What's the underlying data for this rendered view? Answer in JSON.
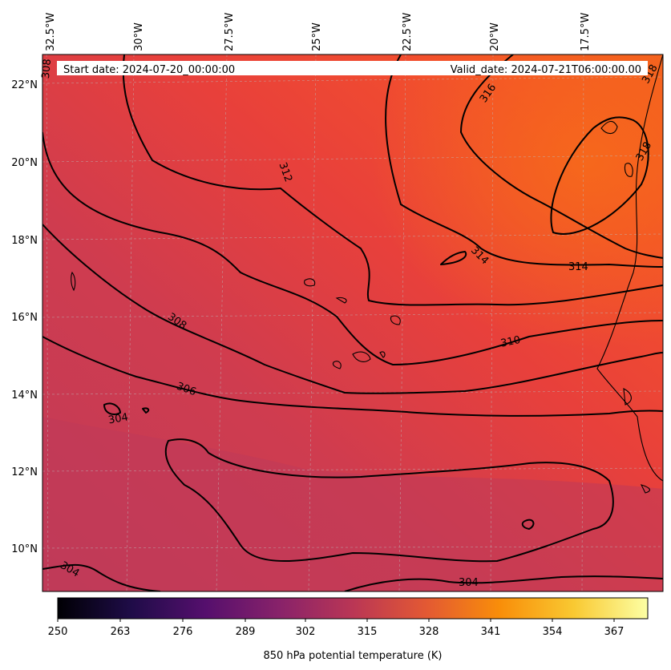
{
  "header": {
    "start_date": "Start date: 2024-07-20_00:00:00",
    "valid_date": "Valid_date: 2024-07-21T06:00:00.00"
  },
  "lon_labels": [
    "32.5°W",
    "30°W",
    "27.5°W",
    "25°W",
    "22.5°W",
    "20°W",
    "17.5°W"
  ],
  "lat_labels": [
    "22°N",
    "20°N",
    "18°N",
    "16°N",
    "14°N",
    "12°N",
    "10°N"
  ],
  "contour_labels": [
    "318",
    "318",
    "316",
    "314",
    "314",
    "312",
    "310",
    "308",
    "308",
    "306",
    "304",
    "304",
    "304"
  ],
  "colorbar": {
    "ticks": [
      "250",
      "263",
      "276",
      "289",
      "302",
      "315",
      "328",
      "341",
      "354",
      "367"
    ],
    "label": "850 hPa potential temperature (K)",
    "colors": [
      "#000004",
      "#1f0c48",
      "#550f6d",
      "#88226a",
      "#ba3655",
      "#e35933",
      "#f98e09",
      "#f9c932",
      "#fcffa4"
    ]
  }
}
